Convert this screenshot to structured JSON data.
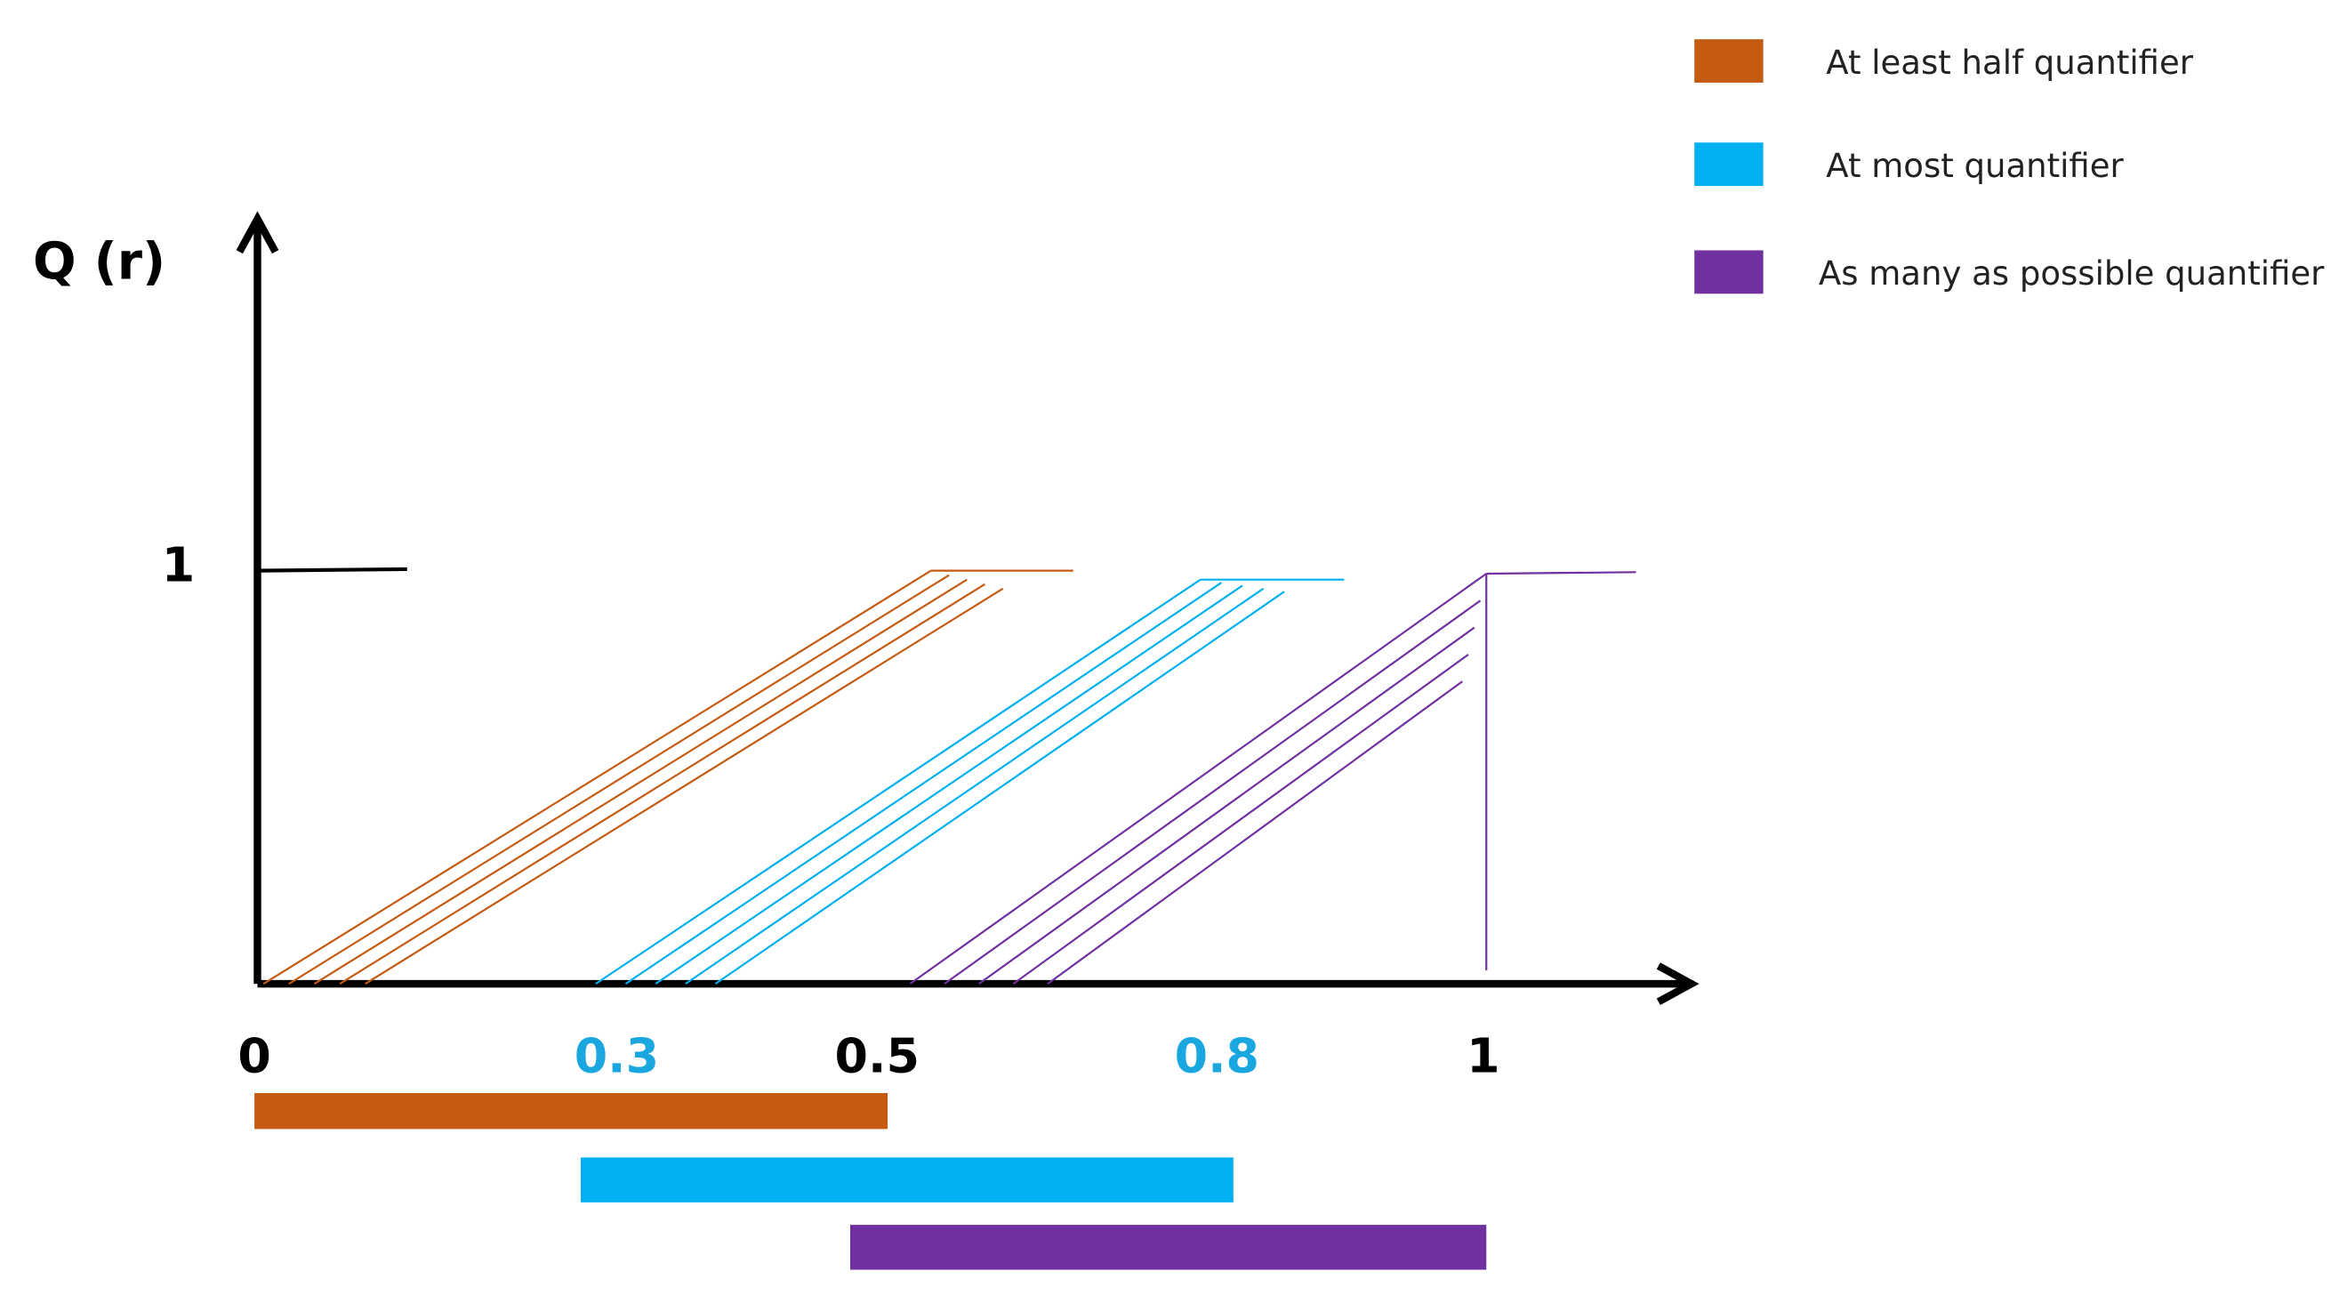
{
  "axis": {
    "y_label": "Q (r)",
    "y_tick": "1",
    "x_ticks": [
      "0",
      "0.3",
      "0.5",
      "0.8",
      "1"
    ]
  },
  "legend": [
    {
      "label": "At least half quantifier",
      "color": "#c55a11"
    },
    {
      "label": "At most quantifier",
      "color": "#00b0f0"
    },
    {
      "label": "As many as possible quantifier",
      "color": "#7030a0"
    }
  ]
}
